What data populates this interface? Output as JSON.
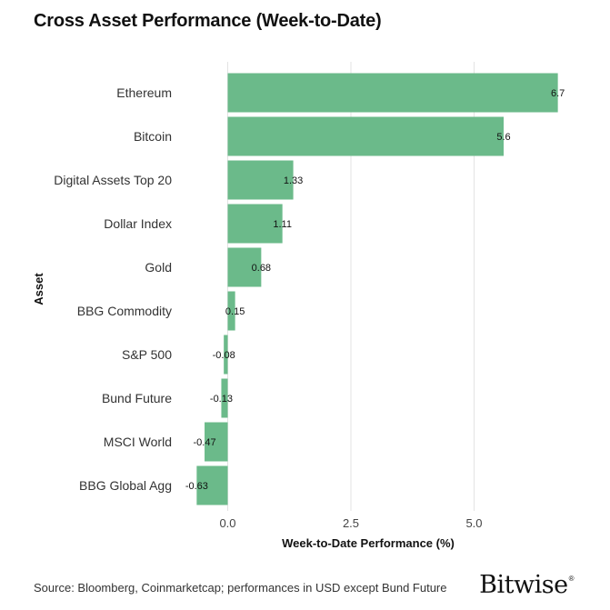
{
  "title": "Cross Asset Performance (Week-to-Date)",
  "footer": {
    "source": "Source: Bloomberg, Coinmarketcap; performances in USD except Bund Future",
    "logo": "Bitwise",
    "logo_mark": "®"
  },
  "colors": {
    "bar": "#6bba8a",
    "grid": "#e3e3e3",
    "text": "#222222"
  },
  "chart_data": {
    "type": "bar",
    "orientation": "horizontal",
    "categories": [
      "Ethereum",
      "Bitcoin",
      "Digital Assets Top 20",
      "Dollar Index",
      "Gold",
      "BBG Commodity",
      "S&P 500",
      "Bund Future",
      "MSCI World",
      "BBG Global Agg"
    ],
    "values": [
      6.7,
      5.6,
      1.33,
      1.11,
      0.68,
      0.15,
      -0.08,
      -0.13,
      -0.47,
      -0.63
    ],
    "value_labels": [
      "6.7",
      "5.6",
      "1.33",
      "1.11",
      "0.68",
      "0.15",
      "-0.08",
      "-0.13",
      "-0.47",
      "-0.63"
    ],
    "xlabel": "Week-to-Date Performance (%)",
    "ylabel": "Asset",
    "xticks": [
      0.0,
      2.5,
      5.0
    ],
    "xtick_labels": [
      "0.0",
      "2.5",
      "5.0"
    ],
    "xlim": [
      -0.63,
      6.7
    ],
    "grid": true,
    "legend": "none"
  }
}
